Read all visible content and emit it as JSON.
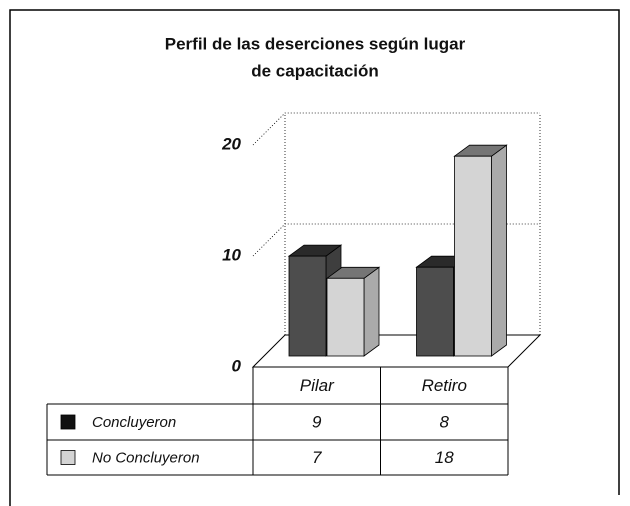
{
  "chart_data": {
    "type": "bar3d",
    "title": [
      "Perfil de las deserciones según lugar",
      "de capacitación"
    ],
    "categories": [
      "Pilar",
      "Retiro"
    ],
    "series": [
      {
        "name": "Concluyeron",
        "color": "#4d4d4d",
        "values": [
          9,
          8
        ]
      },
      {
        "name": "No Concluyeron",
        "color": "#d4d4d4",
        "values": [
          7,
          18
        ]
      }
    ],
    "ylim": [
      0,
      20
    ],
    "yticks": [
      0,
      10,
      20
    ],
    "grid": true,
    "data_table": true
  }
}
